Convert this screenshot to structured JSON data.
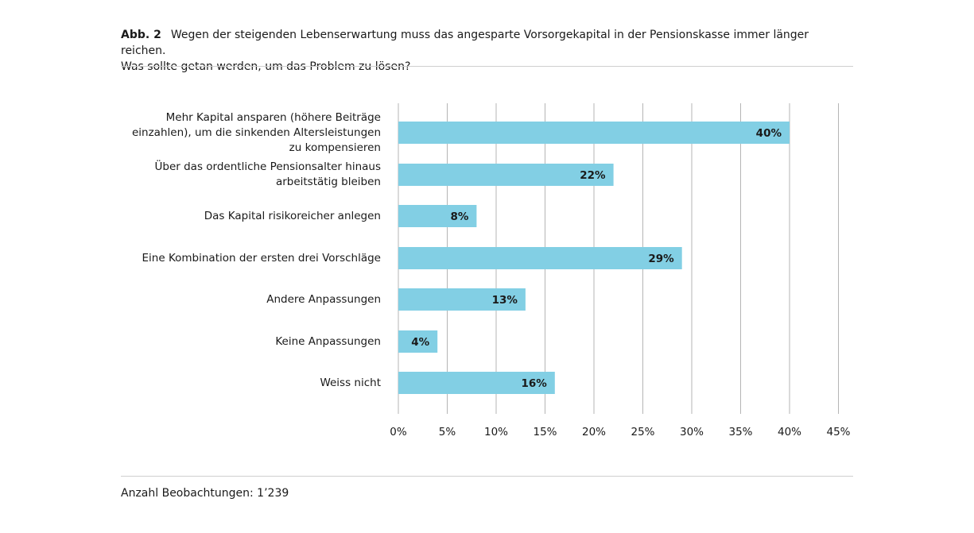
{
  "figure": {
    "number": "Abb. 2",
    "title_line1": "Wegen der steigenden Lebenserwartung muss das angesparte Vorsorgekapital in der Pensionskasse immer länger reichen.",
    "title_line2": "Was sollte getan werden, um das Problem zu lösen?",
    "footnote": "Anzahl Beobachtungen: 1’239"
  },
  "chart_data": {
    "type": "bar",
    "orientation": "horizontal",
    "title": "",
    "xlabel": "",
    "ylabel": "",
    "categories": [
      [
        "Mehr Kapital ansparen (höhere Beiträge",
        "einzahlen), um die sinkenden Altersleistungen",
        "zu kompensieren"
      ],
      [
        "Über das ordentliche Pensionsalter hinaus",
        "arbeitstätig bleiben"
      ],
      [
        "Das Kapital risikoreicher anlegen"
      ],
      [
        "Eine Kombination der ersten drei Vorschläge"
      ],
      [
        "Andere Anpassungen"
      ],
      [
        "Keine Anpassungen"
      ],
      [
        "Weiss nicht"
      ]
    ],
    "values": [
      40,
      22,
      8,
      29,
      13,
      4,
      16
    ],
    "data_labels": [
      "40%",
      "22%",
      "8%",
      "29%",
      "13%",
      "4%",
      "16%"
    ],
    "xlim": [
      0,
      45
    ],
    "x_ticks": [
      0,
      5,
      10,
      15,
      20,
      25,
      30,
      35,
      40,
      45
    ],
    "x_tick_labels": [
      "0%",
      "5%",
      "10%",
      "15%",
      "20%",
      "25%",
      "30%",
      "35%",
      "40%",
      "45%"
    ],
    "grid": "vertical",
    "bar_color": "#82cfe4",
    "grid_color": "#b5b5b5",
    "legend": "none"
  }
}
